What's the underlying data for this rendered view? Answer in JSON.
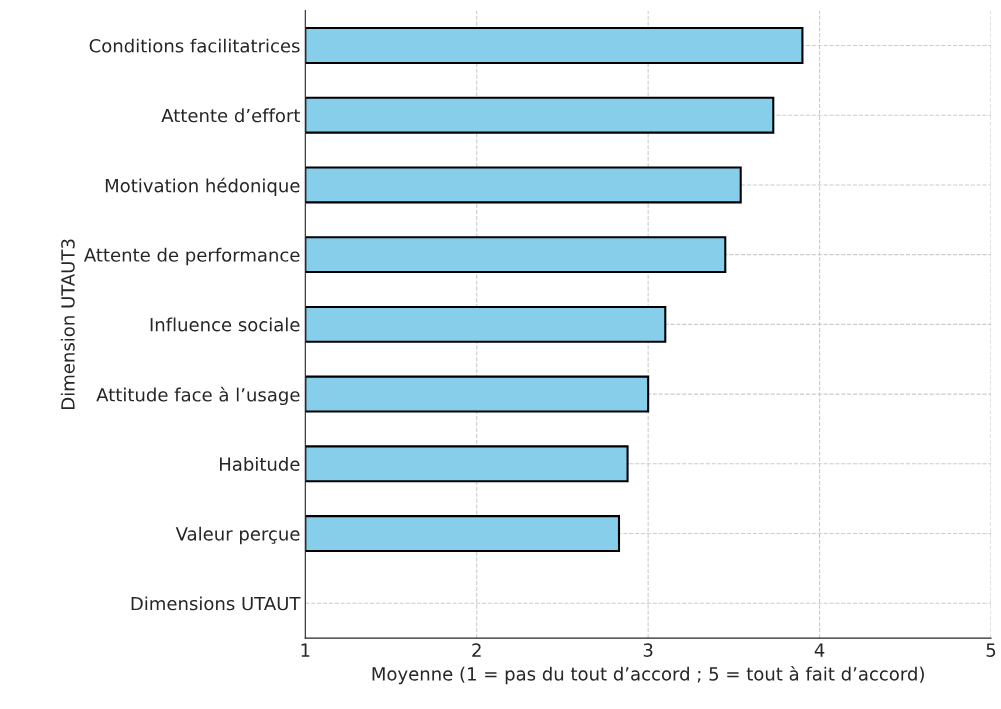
{
  "chart_data": {
    "type": "bar",
    "orientation": "horizontal",
    "xlabel": "Moyenne (1 = pas du tout d’accord ; 5 = tout à fait d’accord)",
    "ylabel": "Dimension UTAUT3",
    "categories": [
      "Conditions facilitatrices",
      "Attente d’effort",
      "Motivation hédonique",
      "Attente de performance",
      "Influence sociale",
      "Attitude face à l’usage",
      "Habitude",
      "Valeur perçue",
      "Dimensions UTAUT"
    ],
    "values": [
      3.9,
      3.73,
      3.54,
      3.45,
      3.1,
      3.0,
      2.88,
      2.83,
      null
    ],
    "color": "#87ceeb",
    "xlim": [
      1,
      5
    ],
    "xticks": [
      1,
      2,
      3,
      4,
      5
    ],
    "grid": true
  }
}
